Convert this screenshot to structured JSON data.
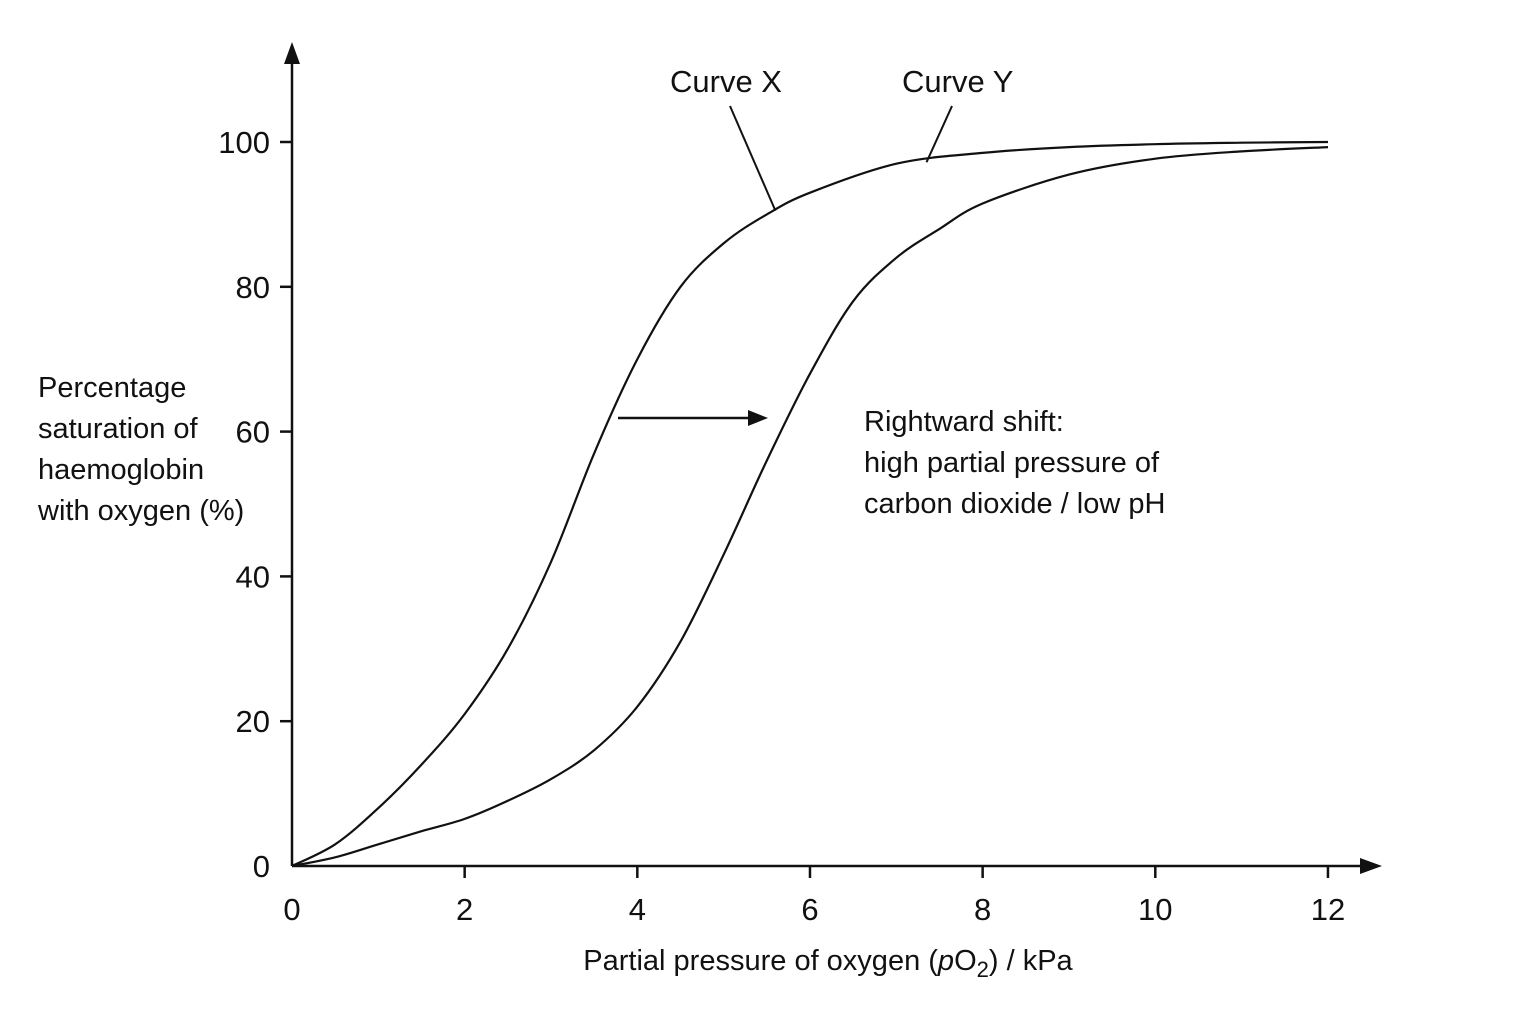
{
  "chart_data": {
    "type": "line",
    "xlabel": {
      "prefix": "Partial pressure of oxygen (",
      "italic": "p",
      "chem": "O",
      "sub": "2",
      "suffix": ") / kPa"
    },
    "ylabel_lines": [
      "Percentage",
      "saturation of",
      "haemoglobin",
      "with oxygen (%)"
    ],
    "xlim": [
      0,
      12
    ],
    "ylim": [
      0,
      100
    ],
    "x_ticks": [
      "0",
      "2",
      "4",
      "6",
      "8",
      "10",
      "12"
    ],
    "y_ticks": [
      "0",
      "20",
      "40",
      "60",
      "80",
      "100"
    ],
    "grid": false,
    "series": [
      {
        "name": "Curve X",
        "x": [
          0,
          0.5,
          1,
          1.5,
          2,
          2.5,
          3,
          3.5,
          4,
          4.5,
          5,
          5.5,
          6,
          7,
          8,
          9,
          10,
          11,
          12
        ],
        "y": [
          0,
          3,
          8,
          14,
          21,
          30,
          42,
          57,
          70,
          80,
          86,
          90,
          93,
          97,
          98.5,
          99.3,
          99.7,
          99.9,
          100
        ]
      },
      {
        "name": "Curve Y",
        "x": [
          0,
          0.5,
          1,
          1.5,
          2,
          2.5,
          3,
          3.5,
          4,
          4.5,
          5,
          5.5,
          6,
          6.5,
          7,
          7.5,
          8,
          9,
          10,
          11,
          12
        ],
        "y": [
          0,
          1.2,
          3,
          4.8,
          6.5,
          9,
          12,
          16,
          22,
          31,
          43,
          56,
          68,
          78,
          84,
          88,
          91.5,
          95.5,
          97.7,
          98.7,
          99.3
        ]
      }
    ],
    "annotations": {
      "shift_lines": [
        "Rightward shift:",
        "high partial pressure of",
        "carbon dioxide / low pH"
      ],
      "arrow_direction": "right"
    }
  }
}
